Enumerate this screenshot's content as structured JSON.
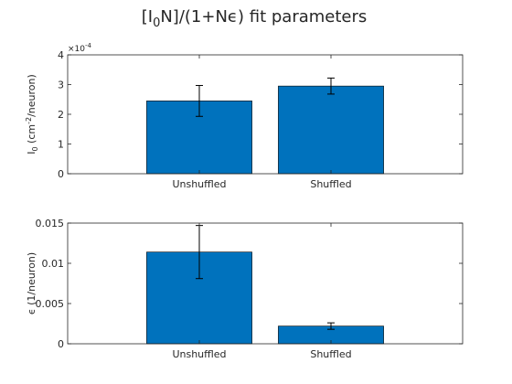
{
  "figure": {
    "title": "[I_0N]/(1+Nε) fit parameters"
  },
  "colors": {
    "bar": "#0072BD",
    "axis": "#262626",
    "background": "#ffffff"
  },
  "chart_data": [
    {
      "type": "bar",
      "categories": [
        "Unshuffled",
        "Shuffled"
      ],
      "values": [
        0.000245,
        0.000295
      ],
      "error": [
        5.2e-05,
        2.7e-05
      ],
      "ylabel": "I_0 (cm^-2/neuron)",
      "ylim": [
        0,
        0.0004
      ],
      "yticks": [
        0,
        1,
        2,
        3,
        4
      ],
      "exponent_label": "×10^-4",
      "xlim": [
        0,
        3
      ],
      "grid": false,
      "error_bars": true
    },
    {
      "type": "bar",
      "categories": [
        "Unshuffled",
        "Shuffled"
      ],
      "values": [
        0.0114,
        0.0022
      ],
      "error": [
        0.0033,
        0.0004
      ],
      "ylabel": "ε (1/neuron)",
      "ylim": [
        0,
        0.015
      ],
      "yticks": [
        "0",
        "0.005",
        "0.01",
        "0.015"
      ],
      "xlim": [
        0,
        3
      ],
      "grid": false,
      "error_bars": true
    }
  ]
}
